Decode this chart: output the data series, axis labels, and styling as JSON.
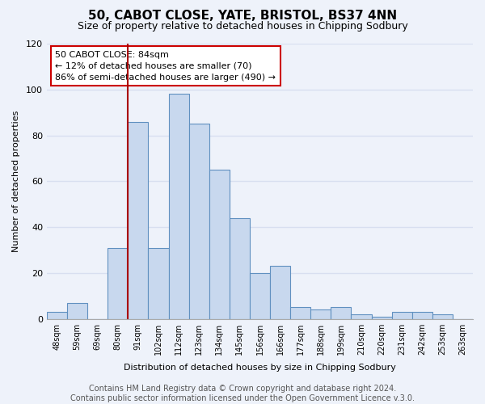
{
  "title": "50, CABOT CLOSE, YATE, BRISTOL, BS37 4NN",
  "subtitle": "Size of property relative to detached houses in Chipping Sodbury",
  "xlabel": "Distribution of detached houses by size in Chipping Sodbury",
  "ylabel": "Number of detached properties",
  "bar_color": "#c8d8ee",
  "bar_edge_color": "#6090c0",
  "background_color": "#eef2fa",
  "grid_color": "#d8dff0",
  "categories": [
    "48sqm",
    "59sqm",
    "69sqm",
    "80sqm",
    "91sqm",
    "102sqm",
    "112sqm",
    "123sqm",
    "134sqm",
    "145sqm",
    "156sqm",
    "166sqm",
    "177sqm",
    "188sqm",
    "199sqm",
    "210sqm",
    "220sqm",
    "231sqm",
    "242sqm",
    "253sqm",
    "263sqm"
  ],
  "values": [
    3,
    7,
    0,
    31,
    86,
    31,
    98,
    85,
    65,
    44,
    20,
    23,
    5,
    4,
    5,
    2,
    1,
    3,
    3,
    2,
    0
  ],
  "ylim": [
    0,
    120
  ],
  "yticks": [
    0,
    20,
    40,
    60,
    80,
    100,
    120
  ],
  "vline_index": 4,
  "vline_color": "#aa0000",
  "annotation_text": "50 CABOT CLOSE: 84sqm\n← 12% of detached houses are smaller (70)\n86% of semi-detached houses are larger (490) →",
  "footer_text": "Contains HM Land Registry data © Crown copyright and database right 2024.\nContains public sector information licensed under the Open Government Licence v.3.0.",
  "title_fontsize": 11,
  "subtitle_fontsize": 9,
  "footer_fontsize": 7
}
